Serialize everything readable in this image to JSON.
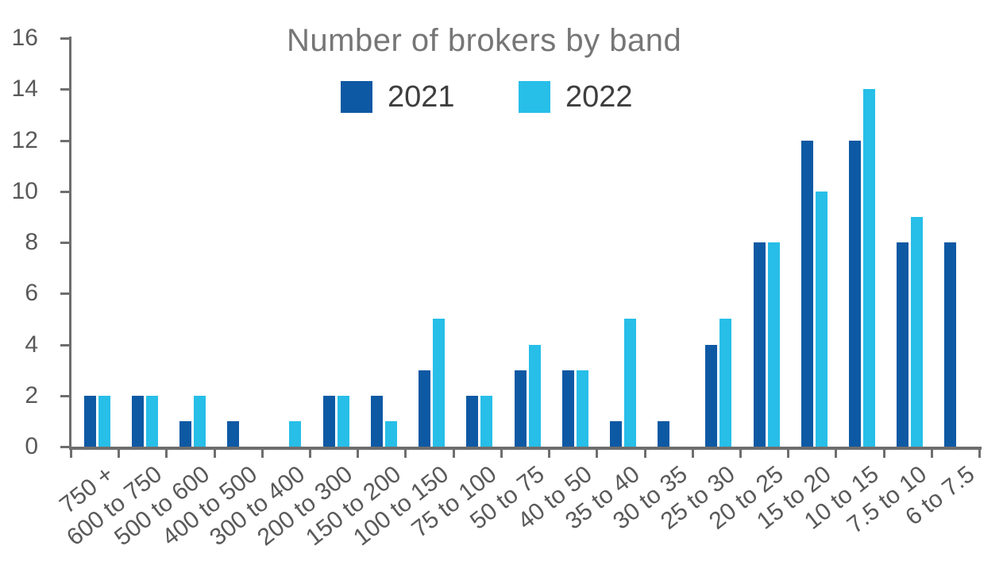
{
  "chart_data": {
    "type": "bar",
    "title": "Number of brokers by band",
    "categories": [
      "750 +",
      "600 to 750",
      "500 to 600",
      "400 to 500",
      "300 to 400",
      "200 to 300",
      "150 to 200",
      "100 to 150",
      "75 to 100",
      "50 to 75",
      "40 to 50",
      "35 to 40",
      "30 to 35",
      "25 to 30",
      "20 to 25",
      "15 to 20",
      "10 to 15",
      "7.5 to 10",
      "6 to 7.5"
    ],
    "series": [
      {
        "name": "2021",
        "color": "#0E59A4",
        "values": [
          2,
          2,
          1,
          1,
          0,
          2,
          2,
          3,
          2,
          3,
          3,
          1,
          1,
          4,
          8,
          12,
          12,
          8,
          8
        ]
      },
      {
        "name": "2022",
        "color": "#27BEE8",
        "values": [
          2,
          2,
          2,
          0,
          1,
          2,
          1,
          5,
          2,
          4,
          3,
          5,
          0,
          5,
          8,
          10,
          14,
          9,
          0
        ]
      }
    ],
    "xlabel": "",
    "ylabel": "",
    "ylim": [
      0,
      16
    ],
    "yticks": [
      0,
      2,
      4,
      6,
      8,
      10,
      12,
      14,
      16
    ],
    "grid": false,
    "legend_position": "top-center",
    "colors": {
      "axis": "#6E6E6E",
      "tick_label": "#595959",
      "title": "#767676",
      "legend_text": "#3E3E3E",
      "background": "#FFFFFF"
    }
  }
}
